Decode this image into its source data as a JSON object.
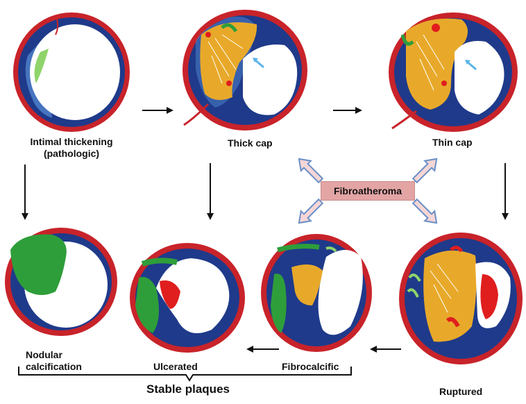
{
  "labels": {
    "intimal_thickening": "Intimal thickening",
    "pathologic": "(pathologic)",
    "thick_cap": "Thick cap",
    "thin_cap": "Thin cap",
    "fibroatheroma": "Fibroatheroma",
    "nodular": "Nodular",
    "calcification": "calcification",
    "ulcerated": "Ulcerated",
    "fibrocalcific": "Fibrocalcific",
    "ruptured": "Ruptured",
    "stable_plaques": "Stable plaques"
  },
  "colors": {
    "adventitia": "#c8232a",
    "media": "#1f3a8a",
    "intima": "#4a7bc4",
    "lumen": "#ffffff",
    "necrotic_core": "#e8a92a",
    "calcium": "#2e9e3a",
    "hemorrhage": "#e01e1e",
    "fibroatheroma_box": "#e3a4a4",
    "arrow_outline": "#6a8fc8",
    "arrow_fill": "#f6d6d6"
  }
}
